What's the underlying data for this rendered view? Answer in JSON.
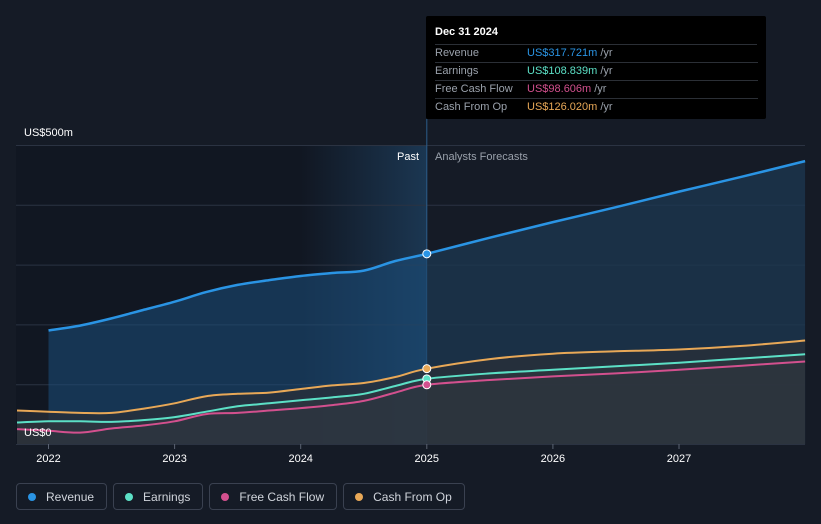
{
  "chart_data": {
    "type": "area",
    "y_axis_top_label": "US$500m",
    "y_axis_bottom_label": "US$0",
    "ylim": [
      0,
      500
    ],
    "x_tick_labels": [
      "2022",
      "2023",
      "2024",
      "2025",
      "2026",
      "2027"
    ],
    "x_ticks": [
      2022,
      2023,
      2024,
      2025,
      2026,
      2027
    ],
    "xlim": [
      2021.75,
      2028.0
    ],
    "divider_x": 2025.0,
    "past_label": "Past",
    "forecast_label": "Analysts Forecasts",
    "grid": true,
    "legend_position": "bottom-left",
    "series": [
      {
        "name": "Revenue",
        "color": "#2a94e4",
        "x": [
          2022.0,
          2022.25,
          2022.5,
          2022.75,
          2023.0,
          2023.25,
          2023.5,
          2023.75,
          2024.0,
          2024.25,
          2024.5,
          2024.75,
          2025.0,
          2025.5,
          2026.0,
          2026.5,
          2027.0,
          2027.5,
          2028.0
        ],
        "y": [
          190,
          198,
          210,
          224,
          238,
          254,
          266,
          274,
          281,
          286,
          290,
          306,
          318,
          345,
          371,
          396,
          422,
          447,
          473
        ]
      },
      {
        "name": "Earnings",
        "color": "#5ce0c6",
        "x": [
          2021.75,
          2022.0,
          2022.25,
          2022.5,
          2022.75,
          2023.0,
          2023.25,
          2023.5,
          2023.75,
          2024.0,
          2024.25,
          2024.5,
          2024.75,
          2025.0,
          2025.5,
          2026.0,
          2026.5,
          2027.0,
          2027.5,
          2028.0
        ],
        "y": [
          36,
          38,
          38,
          37,
          40,
          45,
          54,
          63,
          68,
          73,
          78,
          84,
          97,
          109,
          118,
          124,
          130,
          136,
          143,
          150
        ]
      },
      {
        "name": "Free Cash Flow",
        "color": "#d3508e",
        "x": [
          2021.75,
          2022.0,
          2022.25,
          2022.5,
          2022.75,
          2023.0,
          2023.25,
          2023.5,
          2023.75,
          2024.0,
          2024.25,
          2024.5,
          2024.75,
          2025.0,
          2025.5,
          2026.0,
          2026.5,
          2027.0,
          2027.5,
          2028.0
        ],
        "y": [
          25,
          22,
          19,
          26,
          31,
          38,
          50,
          52,
          56,
          60,
          65,
          72,
          86,
          99,
          107,
          113,
          118,
          124,
          131,
          138
        ]
      },
      {
        "name": "Cash From Op",
        "color": "#e8a857",
        "x": [
          2021.75,
          2022.0,
          2022.25,
          2022.5,
          2022.75,
          2023.0,
          2023.25,
          2023.5,
          2023.75,
          2024.0,
          2024.25,
          2024.5,
          2024.75,
          2025.0,
          2025.5,
          2026.0,
          2026.5,
          2027.0,
          2027.5,
          2028.0
        ],
        "y": [
          56,
          54,
          52,
          52,
          59,
          68,
          80,
          84,
          86,
          92,
          98,
          102,
          112,
          126,
          142,
          151,
          155,
          158,
          164,
          173
        ]
      }
    ]
  },
  "tooltip": {
    "date": "Dec 31 2024",
    "rows": [
      {
        "label": "Revenue",
        "value": "US$317.721m",
        "unit": "/yr",
        "color": "#2a94e4"
      },
      {
        "label": "Earnings",
        "value": "US$108.839m",
        "unit": "/yr",
        "color": "#5ce0c6"
      },
      {
        "label": "Free Cash Flow",
        "value": "US$98.606m",
        "unit": "/yr",
        "color": "#d3508e"
      },
      {
        "label": "Cash From Op",
        "value": "US$126.020m",
        "unit": "/yr",
        "color": "#e8a857"
      }
    ]
  },
  "legend": [
    {
      "label": "Revenue",
      "color": "#2a94e4"
    },
    {
      "label": "Earnings",
      "color": "#5ce0c6"
    },
    {
      "label": "Free Cash Flow",
      "color": "#d3508e"
    },
    {
      "label": "Cash From Op",
      "color": "#e8a857"
    }
  ]
}
